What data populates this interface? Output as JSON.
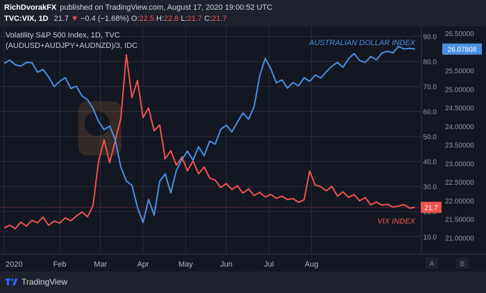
{
  "header": {
    "author": "RichDvorakFX",
    "published": "published on TradingView.com, August 17, 2020 19:00:52 UTC",
    "symbol": "TVC:VIX, 1D",
    "last": "21.7",
    "change_arrow": "▼",
    "change": "−0.4 (−1.68%)",
    "open_label": "O:",
    "open": "22.5",
    "high_label": "H:",
    "high": "22.8",
    "low_label": "L:",
    "low": "21.7",
    "close_label": "C:",
    "close": "21.7"
  },
  "legend": {
    "line1": "Volatility S&P 500 Index, 1D, TVC",
    "line2": "(AUDUSD+AUDJPY+AUDNZD)/3, IDC"
  },
  "footer": {
    "brand": "TradingView"
  },
  "colors": {
    "vix": "#ef5350",
    "aud": "#4a90e2",
    "bg": "#131722",
    "grid": "#2a2e39",
    "text": "#9598a1"
  },
  "chart_data": {
    "type": "line",
    "x_labels": [
      "2020",
      "Feb",
      "Mar",
      "Apr",
      "May",
      "Jun",
      "Jul",
      "Aug"
    ],
    "annotations": [
      "AUSTRALIAN DOLLAR INDEX",
      "VIX INDEX"
    ],
    "y_left": {
      "ticks": [
        "90.0",
        "80.0",
        "70.0",
        "60.0",
        "50.0",
        "40.0",
        "30.0",
        "20.0",
        "10.0"
      ],
      "range": [
        3,
        94
      ]
    },
    "y_right": {
      "ticks": [
        "26.50000",
        "26.00000",
        "25.50000",
        "25.00000",
        "24.50000",
        "24.00000",
        "23.50000",
        "23.00000",
        "22.50000",
        "22.00000",
        "21.50000",
        "21.00000"
      ],
      "range": [
        20.56,
        26.69
      ]
    },
    "last_vix_label": "21.7",
    "last_aud_label": "26.07808",
    "scale_buttons": [
      "A",
      "B"
    ],
    "series": [
      {
        "name": "VIX INDEX",
        "axis": "left",
        "x": [
          0,
          3,
          6,
          9,
          12,
          15,
          18,
          21,
          24,
          27,
          30,
          33,
          36,
          39,
          42,
          45,
          48,
          51,
          54,
          57,
          60,
          63,
          66,
          69,
          72,
          75,
          78,
          81,
          84,
          87,
          90,
          93,
          96,
          99,
          102,
          105,
          108,
          111,
          114,
          117,
          120,
          123,
          126,
          129,
          132,
          135,
          138,
          141,
          144,
          147,
          150,
          153,
          156,
          159,
          162,
          165,
          168,
          171,
          174,
          177,
          180,
          183,
          186,
          189,
          192,
          195,
          198,
          201,
          204,
          207,
          210,
          213,
          216,
          219,
          222
        ],
        "values": [
          13.5,
          14.5,
          13.2,
          15.8,
          14.2,
          16.5,
          15.5,
          17.8,
          14.5,
          16.2,
          15.4,
          17.5,
          16.3,
          18.2,
          19.8,
          17.9,
          22.4,
          40.2,
          48.7,
          39.5,
          48.4,
          57.3,
          82.7,
          65.5,
          72.4,
          57.6,
          61.4,
          52.3,
          54.6,
          41.1,
          44.3,
          38.5,
          41.8,
          36.3,
          40.2,
          35.1,
          37.8,
          33.4,
          32.6,
          29.6,
          31.2,
          28.8,
          30.3,
          27.4,
          29.1,
          26.4,
          27.7,
          25.8,
          26.9,
          25.3,
          26.1,
          24.8,
          25.2,
          23.7,
          24.7,
          36.2,
          30.6,
          29.9,
          28.3,
          30.1,
          26.2,
          27.9,
          25.7,
          26.8,
          24.3,
          25.6,
          22.7,
          23.8,
          22.6,
          22.9,
          21.8,
          22.2,
          22.8,
          21.4,
          21.7
        ]
      },
      {
        "name": "AUSTRALIAN DOLLAR INDEX",
        "axis": "right",
        "x": [
          0,
          3,
          6,
          9,
          12,
          15,
          18,
          21,
          24,
          27,
          30,
          33,
          36,
          39,
          42,
          45,
          48,
          51,
          54,
          57,
          60,
          63,
          66,
          69,
          72,
          75,
          78,
          81,
          84,
          87,
          90,
          93,
          96,
          99,
          102,
          105,
          108,
          111,
          114,
          117,
          120,
          123,
          126,
          129,
          132,
          135,
          138,
          141,
          144,
          147,
          150,
          153,
          156,
          159,
          162,
          165,
          168,
          171,
          174,
          177,
          180,
          183,
          186,
          189,
          192,
          195,
          198,
          201,
          204,
          207,
          210,
          213,
          216,
          219,
          222
        ],
        "values": [
          25.7,
          25.78,
          25.66,
          25.62,
          25.72,
          25.71,
          25.46,
          25.53,
          25.33,
          25.07,
          25.21,
          25.31,
          25.02,
          25.08,
          24.82,
          24.72,
          24.48,
          24.13,
          23.91,
          24.01,
          23.64,
          22.91,
          22.53,
          22.41,
          21.82,
          21.41,
          22.03,
          21.61,
          22.52,
          22.72,
          22.21,
          22.81,
          23.11,
          23.33,
          23.09,
          23.45,
          23.21,
          23.6,
          23.52,
          23.92,
          24.03,
          23.85,
          24.12,
          24.36,
          24.19,
          24.53,
          25.35,
          25.83,
          25.55,
          25.17,
          25.25,
          25.03,
          25.18,
          25.09,
          25.31,
          25.21,
          25.38,
          25.3,
          25.47,
          25.62,
          25.72,
          25.59,
          25.82,
          25.96,
          25.77,
          25.72,
          25.88,
          25.79,
          25.97,
          26.02,
          25.98,
          26.15,
          26.08,
          26.1,
          26.08
        ]
      }
    ]
  }
}
